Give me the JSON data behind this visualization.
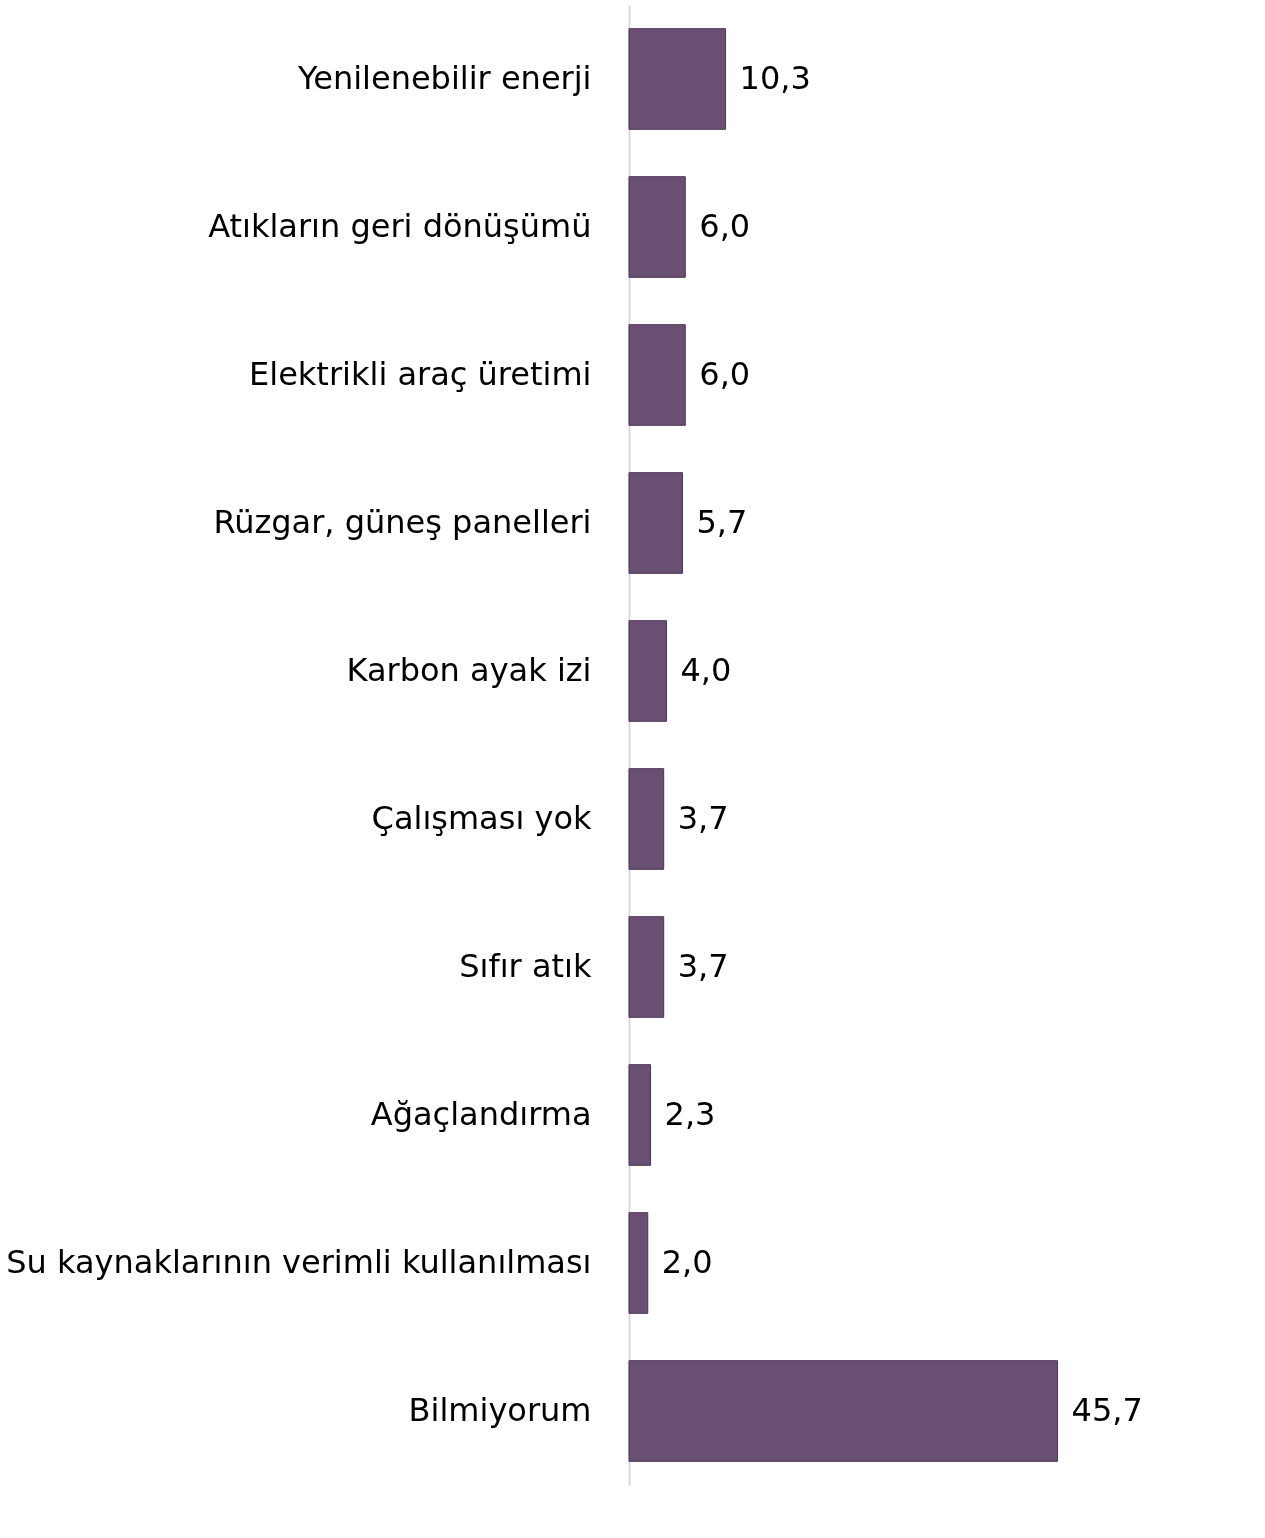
{
  "chart_data": {
    "type": "bar",
    "orientation": "horizontal",
    "categories": [
      "Yenilenebilir enerji",
      "Atıkların geri dönüşümü",
      "Elektrikli araç üretimi",
      "Rüzgar, güneş panelleri",
      "Karbon ayak izi",
      "Çalışması yok",
      "Sıfır atık",
      "Ağaçlandırma",
      "Su kaynaklarının verimli kullanılması",
      "Bilmiyorum"
    ],
    "values": [
      10.3,
      6.0,
      6.0,
      5.7,
      4.0,
      3.7,
      3.7,
      2.3,
      2.0,
      45.7
    ],
    "value_labels": [
      "10,3",
      "6,0",
      "6,0",
      "5,7",
      "4,0",
      "3,7",
      "3,7",
      "2,3",
      "2,0",
      "45,7"
    ],
    "color": "#6b4f73",
    "grid": false
  }
}
